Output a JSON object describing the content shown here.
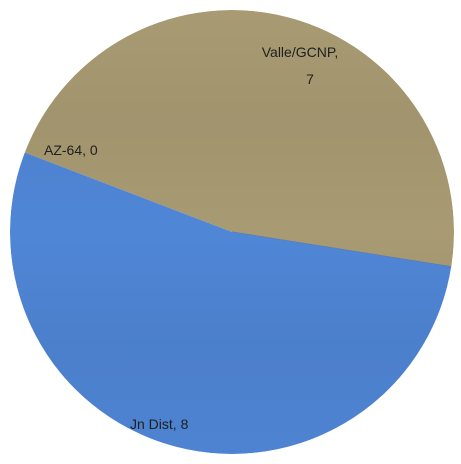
{
  "chart_data": {
    "type": "pie",
    "title": "",
    "slices": [
      {
        "label": "Valle/GCNP",
        "value": 7,
        "label_lines": [
          "Valle/GCNP,",
          "7"
        ],
        "color": "#a89a72"
      },
      {
        "label": "AZ-64",
        "value": 0,
        "label_lines": [
          "AZ-64, 0"
        ],
        "color": "#5b79b0"
      },
      {
        "label": "Jn Dist.",
        "value": 8,
        "label_lines": [
          "Jn Dist, 8"
        ],
        "color": "#4f86d6"
      }
    ],
    "legend": "none"
  }
}
